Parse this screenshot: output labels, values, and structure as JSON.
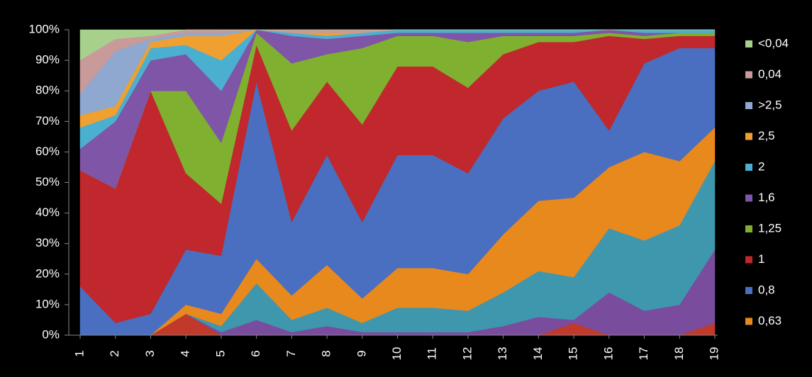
{
  "chart_data": {
    "type": "area",
    "stacked": true,
    "categories": [
      "1",
      "2",
      "3",
      "4",
      "5",
      "6",
      "7",
      "8",
      "9",
      "10",
      "11",
      "12",
      "13",
      "14",
      "15",
      "16",
      "17",
      "18",
      "19"
    ],
    "ylim": [
      0,
      100
    ],
    "yticks": [
      {
        "value": 0,
        "label": "0%"
      },
      {
        "value": 10,
        "label": "10%"
      },
      {
        "value": 20,
        "label": "20%"
      },
      {
        "value": 30,
        "label": "30%"
      },
      {
        "value": 40,
        "label": "40%"
      },
      {
        "value": 50,
        "label": "50%"
      },
      {
        "value": 60,
        "label": "60%"
      },
      {
        "value": 70,
        "label": "70%"
      },
      {
        "value": 80,
        "label": "80%"
      },
      {
        "value": 90,
        "label": "90%"
      },
      {
        "value": 100,
        "label": "100%"
      }
    ],
    "legend": "right",
    "series": [
      {
        "color": "#c0392b",
        "values": [
          0,
          0,
          0,
          7,
          0,
          0,
          0,
          0,
          0,
          0,
          0,
          0,
          0,
          0,
          4,
          0,
          0,
          0,
          4
        ]
      },
      {
        "color": "#7a4c9e",
        "values": [
          0,
          0,
          0,
          0,
          1,
          5,
          1,
          3,
          1,
          1,
          1,
          1,
          3,
          6,
          1,
          14,
          8,
          10,
          24
        ]
      },
      {
        "color": "#3f97ad",
        "values": [
          0,
          0,
          0,
          0,
          2,
          12,
          4,
          6,
          3,
          8,
          8,
          7,
          11,
          15,
          14,
          21,
          23,
          26,
          29
        ]
      },
      {
        "name": "0,63",
        "color": "#e8891d",
        "values": [
          0,
          0,
          0,
          3,
          4,
          8,
          8,
          14,
          8,
          13,
          13,
          12,
          19,
          23,
          26,
          20,
          29,
          21,
          11
        ]
      },
      {
        "name": "0,8",
        "color": "#4a6fc0",
        "values": [
          16,
          4,
          7,
          18,
          19,
          58,
          24,
          36,
          25,
          37,
          37,
          33,
          38,
          36,
          38,
          12,
          29,
          37,
          26
        ]
      },
      {
        "name": "1",
        "color": "#c0282d",
        "values": [
          38,
          44,
          73,
          25,
          17,
          12,
          30,
          24,
          32,
          29,
          29,
          28,
          21,
          16,
          13,
          31,
          8,
          4,
          4
        ]
      },
      {
        "name": "1,25",
        "color": "#7fb030",
        "values": [
          0,
          0,
          0,
          27,
          20,
          4,
          22,
          9,
          25,
          10,
          10,
          15,
          6,
          2,
          2,
          1,
          1,
          1,
          1
        ]
      },
      {
        "name": "1,6",
        "color": "#7f55a8",
        "values": [
          7,
          22,
          10,
          12,
          17,
          1,
          9,
          5,
          4,
          1,
          1,
          3,
          1,
          1,
          1,
          1,
          1,
          0,
          0
        ]
      },
      {
        "name": "2",
        "color": "#4bb0d0",
        "values": [
          7,
          2,
          4,
          3,
          10,
          0,
          1,
          1,
          1,
          1,
          1,
          1,
          1,
          1,
          1,
          0,
          1,
          1,
          1
        ]
      },
      {
        "name": "2,5",
        "color": "#f0a030",
        "values": [
          4,
          3,
          2,
          3,
          8,
          0,
          0,
          1,
          0,
          0,
          0,
          0,
          0,
          0,
          0,
          0,
          0,
          0,
          0
        ]
      },
      {
        "name": ">2,5",
        "color": "#8fa8d0",
        "values": [
          7,
          18,
          1,
          1,
          1,
          0,
          0,
          0,
          0,
          0,
          0,
          0,
          0,
          0,
          0,
          0,
          0,
          0,
          0
        ]
      },
      {
        "name": "0,04",
        "color": "#c89a9a",
        "values": [
          11,
          4,
          1,
          1,
          1,
          0,
          1,
          1,
          1,
          0,
          0,
          0,
          0,
          0,
          0,
          0,
          0,
          0,
          0
        ]
      },
      {
        "name": "<0,04",
        "color": "#a8d08d",
        "values": [
          10,
          3,
          2,
          0,
          0,
          0,
          0,
          0,
          0,
          0,
          0,
          0,
          0,
          0,
          0,
          0,
          0,
          0,
          0
        ]
      }
    ]
  }
}
